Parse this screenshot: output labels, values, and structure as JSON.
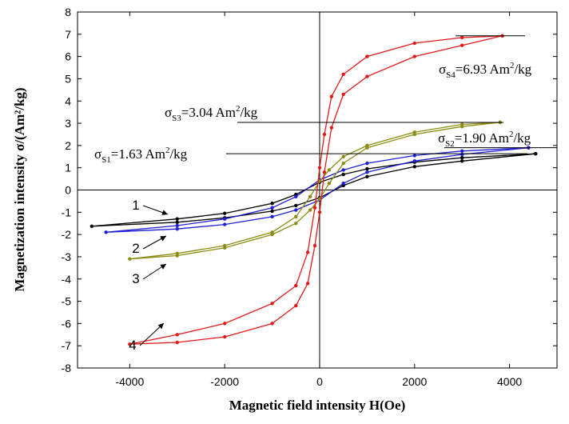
{
  "chart_data": {
    "type": "line",
    "x_label": "Magnetic field intensity H(Oe)",
    "y_label": "Magnetization intensity σ/(Am²/kg)",
    "xlim": [
      -5100,
      5000
    ],
    "ylim": [
      -8,
      8
    ],
    "xticks": [
      -4000,
      -2000,
      0,
      2000,
      4000
    ],
    "yticks": [
      -8,
      -7,
      -6,
      -5,
      -4,
      -3,
      -2,
      -1,
      0,
      1,
      2,
      3,
      4,
      5,
      6,
      7,
      8
    ],
    "series": [
      {
        "name": "1",
        "color": "#000000",
        "x": [
          4550,
          3000,
          2000,
          1000,
          500,
          0,
          -500,
          -1000,
          -2000,
          -3000,
          -4800,
          -3000,
          -2000,
          -1000,
          -500,
          0,
          500,
          1000,
          2000,
          3000,
          4550
        ],
        "values": [
          1.63,
          1.45,
          1.25,
          0.95,
          0.7,
          0.35,
          -0.2,
          -0.6,
          -1.05,
          -1.3,
          -1.63,
          -1.45,
          -1.25,
          -0.95,
          -0.7,
          -0.35,
          0.2,
          0.6,
          1.05,
          1.3,
          1.63
        ]
      },
      {
        "name": "2",
        "color": "#1f1fd6",
        "x": [
          4400,
          3000,
          2000,
          1000,
          500,
          0,
          -500,
          -1000,
          -2000,
          -3000,
          -4500,
          -3000,
          -2000,
          -1000,
          -500,
          0,
          500,
          1000,
          2000,
          3000,
          4400
        ],
        "values": [
          1.9,
          1.75,
          1.55,
          1.2,
          0.9,
          0.45,
          -0.3,
          -0.8,
          -1.3,
          -1.6,
          -1.9,
          -1.75,
          -1.55,
          -1.2,
          -0.9,
          -0.45,
          0.3,
          0.8,
          1.3,
          1.6,
          1.9
        ]
      },
      {
        "name": "3",
        "color": "#8c8c14",
        "x": [
          3800,
          3000,
          2000,
          1000,
          500,
          200,
          0,
          -200,
          -500,
          -1000,
          -2000,
          -3000,
          -4000,
          -3000,
          -2000,
          -1000,
          -500,
          -200,
          0,
          200,
          500,
          1000,
          2000,
          3000,
          3800
        ],
        "values": [
          3.04,
          2.95,
          2.6,
          2.0,
          1.5,
          0.9,
          0.4,
          -0.3,
          -1.2,
          -1.9,
          -2.5,
          -2.85,
          -3.1,
          -2.95,
          -2.6,
          -2.0,
          -1.5,
          -0.9,
          -0.4,
          0.3,
          1.2,
          1.9,
          2.5,
          2.85,
          3.04
        ]
      },
      {
        "name": "4",
        "color": "#e41a1a",
        "x": [
          3850,
          3000,
          2000,
          1000,
          500,
          250,
          100,
          0,
          -100,
          -250,
          -500,
          -1000,
          -2000,
          -3000,
          -4000,
          -3000,
          -2000,
          -1000,
          -500,
          -250,
          -100,
          0,
          100,
          250,
          500,
          1000,
          2000,
          3000,
          3850
        ],
        "values": [
          6.93,
          6.85,
          6.6,
          6.0,
          5.2,
          4.2,
          2.5,
          1.0,
          -0.8,
          -2.8,
          -4.3,
          -5.1,
          -6.0,
          -6.5,
          -6.93,
          -6.85,
          -6.6,
          -6.0,
          -5.2,
          -4.2,
          -2.5,
          -1.0,
          0.8,
          2.8,
          4.3,
          5.1,
          6.0,
          6.5,
          6.93
        ]
      }
    ],
    "annotations": [
      {
        "value": 6.93,
        "parts": [
          {
            "text": "σ"
          },
          {
            "text": "S4",
            "shift": "sub"
          },
          {
            "text": "=6.93 Am"
          },
          {
            "text": "2",
            "shift": "sup"
          },
          {
            "text": "/kg"
          }
        ]
      },
      {
        "value": 3.04,
        "parts": [
          {
            "text": "σ"
          },
          {
            "text": "S3",
            "shift": "sub"
          },
          {
            "text": "=3.04 Am"
          },
          {
            "text": "2",
            "shift": "sup"
          },
          {
            "text": "/kg"
          }
        ]
      },
      {
        "value": 1.9,
        "parts": [
          {
            "text": "σ"
          },
          {
            "text": "S2",
            "shift": "sub"
          },
          {
            "text": "=1.90 Am"
          },
          {
            "text": "2",
            "shift": "sup"
          },
          {
            "text": "/kg"
          }
        ]
      },
      {
        "value": 1.63,
        "parts": [
          {
            "text": "σ"
          },
          {
            "text": "S1",
            "shift": "sub"
          },
          {
            "text": "=1.63 Am"
          },
          {
            "text": "2",
            "shift": "sup"
          },
          {
            "text": "/kg"
          }
        ]
      }
    ]
  }
}
